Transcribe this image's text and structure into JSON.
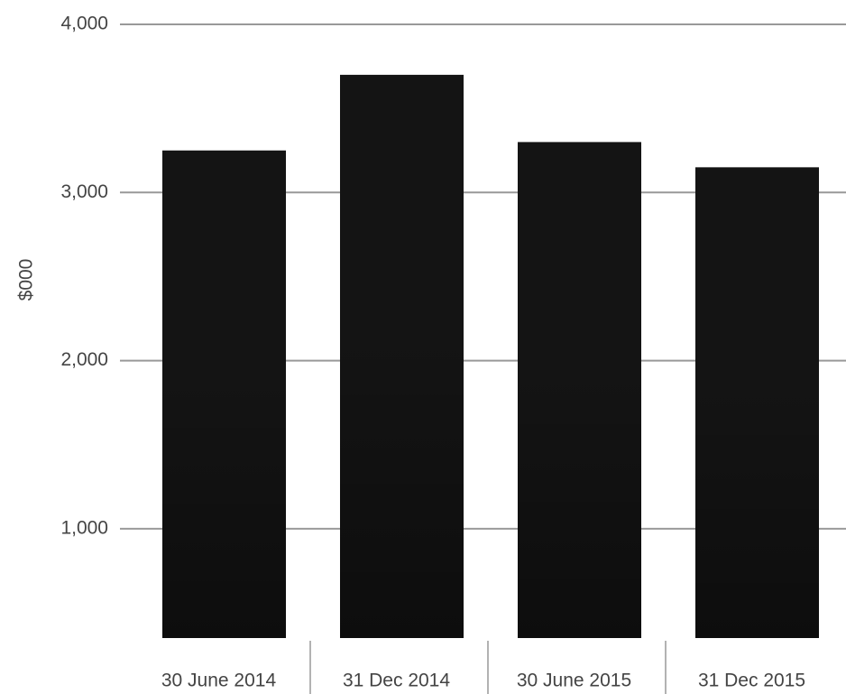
{
  "chart_data": {
    "type": "bar",
    "y_label": "$000",
    "categories": [
      "30 June 2014",
      "31 Dec 2014",
      "30 June 2015",
      "31 Dec 2015"
    ],
    "values": [
      3250,
      3700,
      3300,
      3150
    ],
    "color": "#141414",
    "ylim": [
      350,
      4000
    ],
    "yticks": [
      {
        "value": 1000,
        "label": "1,000"
      },
      {
        "value": 2000,
        "label": "2,000"
      },
      {
        "value": 3000,
        "label": "3,000"
      },
      {
        "value": 4000,
        "label": "4,000"
      }
    ],
    "grid": true
  }
}
